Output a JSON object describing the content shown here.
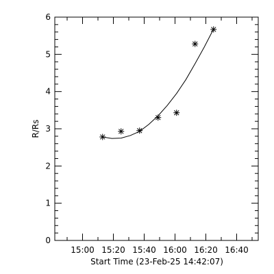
{
  "chart_data": {
    "type": "scatter",
    "xlabel": "Start Time (23-Feb-25 14:42:07)",
    "ylabel": "R/Rs",
    "x_tick_labels": [
      "15:00",
      "15:20",
      "15:40",
      "16:00",
      "16:20",
      "16:40"
    ],
    "x_tick_values_min": [
      18,
      38,
      58,
      78,
      98,
      118
    ],
    "y_tick_labels": [
      "0",
      "1",
      "2",
      "3",
      "4",
      "5",
      "6"
    ],
    "xlim_min_since_start": [
      0,
      132
    ],
    "ylim": [
      0,
      6
    ],
    "series": [
      {
        "marker": "asterisk",
        "points": [
          {
            "time": "15:13",
            "x_min": 31,
            "y": 2.78
          },
          {
            "time": "15:25",
            "x_min": 43,
            "y": 2.93
          },
          {
            "time": "15:37",
            "x_min": 55,
            "y": 2.95
          },
          {
            "time": "15:49",
            "x_min": 67,
            "y": 3.3
          },
          {
            "time": "16:01",
            "x_min": 79,
            "y": 3.43
          },
          {
            "time": "16:13",
            "x_min": 91,
            "y": 5.28
          },
          {
            "time": "16:25",
            "x_min": 103,
            "y": 5.67
          }
        ]
      }
    ],
    "fit_curve": {
      "type": "quadratic",
      "points": [
        {
          "x_min": 31,
          "y": 2.78
        },
        {
          "x_min": 37,
          "y": 2.74
        },
        {
          "x_min": 43,
          "y": 2.75
        },
        {
          "x_min": 49,
          "y": 2.82
        },
        {
          "x_min": 55,
          "y": 2.93
        },
        {
          "x_min": 61,
          "y": 3.12
        },
        {
          "x_min": 67,
          "y": 3.35
        },
        {
          "x_min": 73,
          "y": 3.63
        },
        {
          "x_min": 79,
          "y": 3.95
        },
        {
          "x_min": 85,
          "y": 4.32
        },
        {
          "x_min": 91,
          "y": 4.75
        },
        {
          "x_min": 97,
          "y": 5.2
        },
        {
          "x_min": 103,
          "y": 5.68
        }
      ]
    }
  }
}
